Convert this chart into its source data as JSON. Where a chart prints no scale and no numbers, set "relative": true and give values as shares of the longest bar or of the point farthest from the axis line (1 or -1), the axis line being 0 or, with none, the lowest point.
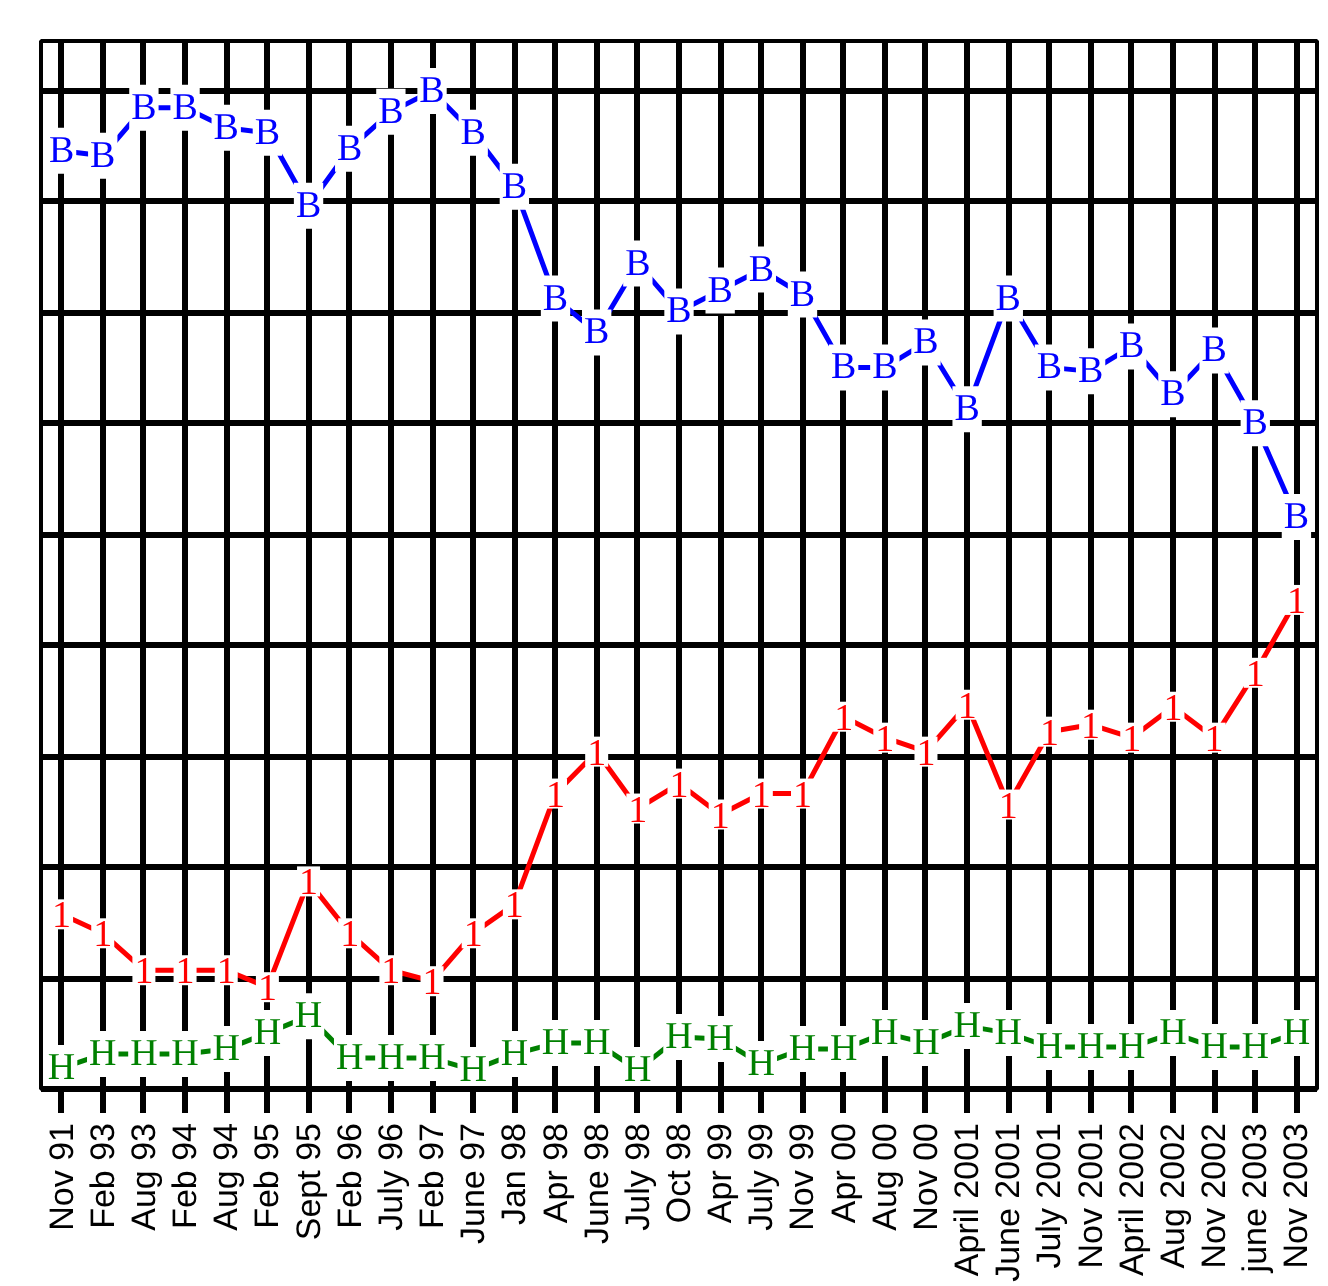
{
  "chart_data": {
    "type": "line",
    "relative": true,
    "grid": true,
    "marker": "square",
    "categories": [
      "Nov 91",
      "Feb 93",
      "Aug 93",
      "Feb 94",
      "Aug 94",
      "Feb 95",
      "Sept 95",
      "Feb 96",
      "July 96",
      "Feb 97",
      "June 97",
      "Jan 98",
      "Apr 98",
      "June 98",
      "July 98",
      "Oct 98",
      "Apr 99",
      "July 99",
      "Nov 99",
      "Apr 00",
      "Aug 00",
      "Nov 00",
      "April 2001",
      "June 2001",
      "July 2001",
      "Nov 2001",
      "April 2002",
      "Aug 2002",
      "Nov 2002",
      "june 2003",
      "Nov 2003"
    ],
    "series": [
      {
        "name": "B",
        "color": "#0000ff",
        "values": [
          0.94,
          0.935,
          0.983,
          0.983,
          0.963,
          0.958,
          0.885,
          0.942,
          0.979,
          1.0,
          0.958,
          0.904,
          0.792,
          0.758,
          0.827,
          0.779,
          0.8,
          0.821,
          0.796,
          0.723,
          0.723,
          0.748,
          0.681,
          0.792,
          0.723,
          0.719,
          0.744,
          0.696,
          0.74,
          0.667,
          0.573
        ]
      },
      {
        "name": "1",
        "color": "#ff0000",
        "values": [
          0.175,
          0.156,
          0.119,
          0.119,
          0.119,
          0.102,
          0.208,
          0.156,
          0.119,
          0.108,
          0.156,
          0.185,
          0.296,
          0.338,
          0.281,
          0.306,
          0.275,
          0.296,
          0.296,
          0.373,
          0.352,
          0.338,
          0.385,
          0.285,
          0.358,
          0.365,
          0.352,
          0.383,
          0.352,
          0.417,
          0.49
        ]
      },
      {
        "name": "H",
        "color": "#008000",
        "values": [
          0.021,
          0.035,
          0.035,
          0.035,
          0.04,
          0.056,
          0.073,
          0.031,
          0.031,
          0.031,
          0.019,
          0.035,
          0.046,
          0.046,
          0.019,
          0.052,
          0.05,
          0.025,
          0.04,
          0.04,
          0.056,
          0.046,
          0.063,
          0.056,
          0.042,
          0.042,
          0.042,
          0.056,
          0.042,
          0.042,
          0.056
        ]
      }
    ]
  }
}
